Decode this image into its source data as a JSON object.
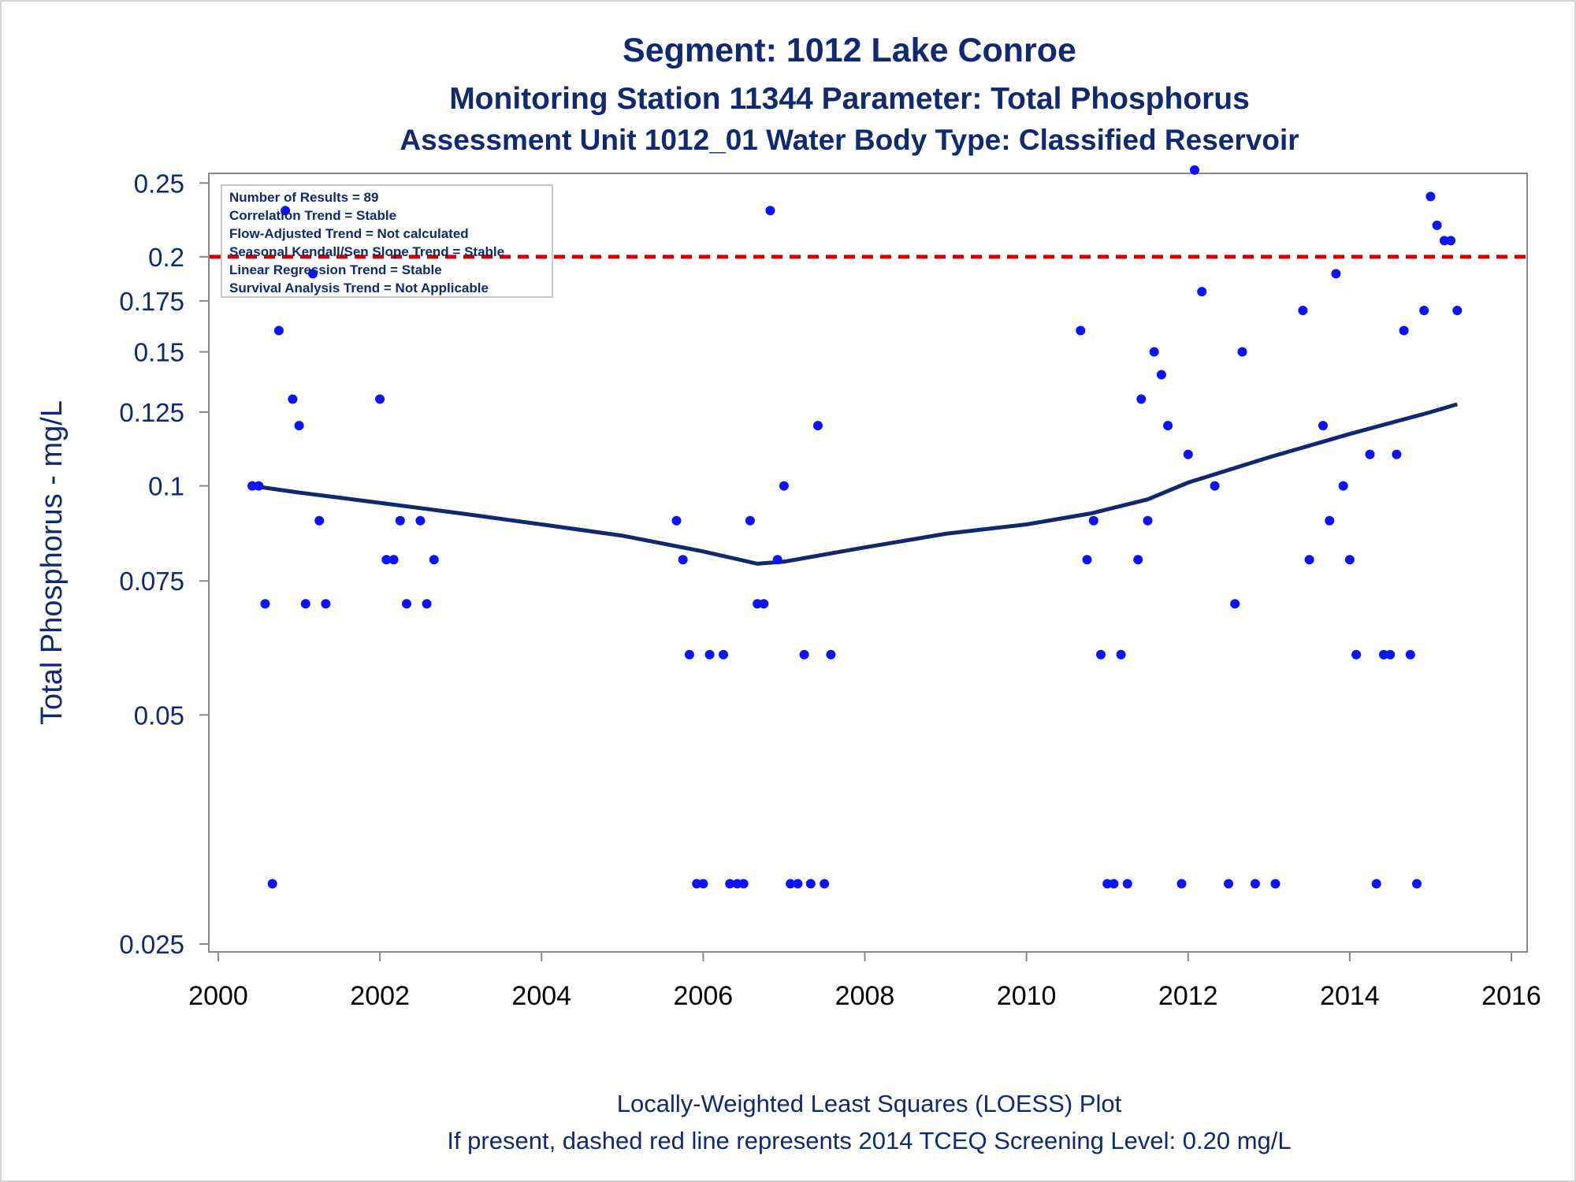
{
  "chart_data": {
    "type": "scatter",
    "title": "Segment: 1012  Lake Conroe",
    "subtitle": "Monitoring Station 11344 Parameter: Total Phosphorus",
    "subtitle2": "Assessment Unit 1012_01   Water Body Type: Classified Reservoir",
    "xlabel": "",
    "ylabel": "Total Phosphorus - mg/L",
    "y_scale": "log",
    "xlim": [
      2000,
      2016
    ],
    "ylim": [
      0.025,
      0.27
    ],
    "x_ticks": [
      2000,
      2002,
      2004,
      2006,
      2008,
      2010,
      2012,
      2014,
      2016
    ],
    "x_tick_labels": [
      "2000",
      "2002",
      "2004",
      "2006",
      "2008",
      "2010",
      "2012",
      "2014",
      "2016"
    ],
    "y_ticks": [
      0.025,
      0.05,
      0.075,
      0.1,
      0.125,
      0.15,
      0.175,
      0.2,
      0.25
    ],
    "y_tick_labels": [
      "0.025",
      "0.05",
      "0.075",
      "0.1",
      "0.125",
      "0.15",
      "0.175",
      "0.2",
      "0.25"
    ],
    "grid": false,
    "colors": {
      "points": "#0a12ff",
      "loess": "#12286e",
      "screening": "#d40000",
      "text": "#0f2a72",
      "axis": "#888888"
    },
    "stats_box": {
      "placement": "top-left",
      "lines": [
        "Number of Results = 89",
        "Correlation Trend = Stable",
        "Flow-Adjusted Trend = Not calculated",
        "Seasonal Kendall/Sen Slope Trend = Stable",
        "Linear Regression Trend = Stable",
        "Survival Analysis Trend = Not Applicable"
      ]
    },
    "screening_level": 0.2,
    "points": [
      {
        "x": 2000.42,
        "y": 0.1
      },
      {
        "x": 2000.5,
        "y": 0.1
      },
      {
        "x": 2000.58,
        "y": 0.07
      },
      {
        "x": 2000.67,
        "y": 0.03
      },
      {
        "x": 2000.75,
        "y": 0.16
      },
      {
        "x": 2000.83,
        "y": 0.23
      },
      {
        "x": 2000.92,
        "y": 0.13
      },
      {
        "x": 2001.0,
        "y": 0.12
      },
      {
        "x": 2001.08,
        "y": 0.07
      },
      {
        "x": 2001.17,
        "y": 0.19
      },
      {
        "x": 2001.25,
        "y": 0.09
      },
      {
        "x": 2001.33,
        "y": 0.07
      },
      {
        "x": 2002.0,
        "y": 0.13
      },
      {
        "x": 2002.08,
        "y": 0.08
      },
      {
        "x": 2002.17,
        "y": 0.08
      },
      {
        "x": 2002.25,
        "y": 0.09
      },
      {
        "x": 2002.33,
        "y": 0.07
      },
      {
        "x": 2002.5,
        "y": 0.09
      },
      {
        "x": 2002.58,
        "y": 0.07
      },
      {
        "x": 2002.67,
        "y": 0.08
      },
      {
        "x": 2005.67,
        "y": 0.09
      },
      {
        "x": 2005.75,
        "y": 0.08
      },
      {
        "x": 2005.83,
        "y": 0.06
      },
      {
        "x": 2005.92,
        "y": 0.03
      },
      {
        "x": 2006.0,
        "y": 0.03
      },
      {
        "x": 2006.08,
        "y": 0.06
      },
      {
        "x": 2006.25,
        "y": 0.06
      },
      {
        "x": 2006.33,
        "y": 0.03
      },
      {
        "x": 2006.42,
        "y": 0.03
      },
      {
        "x": 2006.5,
        "y": 0.03
      },
      {
        "x": 2006.58,
        "y": 0.09
      },
      {
        "x": 2006.67,
        "y": 0.07
      },
      {
        "x": 2006.75,
        "y": 0.07
      },
      {
        "x": 2006.83,
        "y": 0.23
      },
      {
        "x": 2006.92,
        "y": 0.08
      },
      {
        "x": 2007.0,
        "y": 0.1
      },
      {
        "x": 2007.08,
        "y": 0.03
      },
      {
        "x": 2007.17,
        "y": 0.03
      },
      {
        "x": 2007.25,
        "y": 0.06
      },
      {
        "x": 2007.33,
        "y": 0.03
      },
      {
        "x": 2007.42,
        "y": 0.12
      },
      {
        "x": 2007.5,
        "y": 0.03
      },
      {
        "x": 2007.58,
        "y": 0.06
      },
      {
        "x": 2010.67,
        "y": 0.16
      },
      {
        "x": 2010.75,
        "y": 0.08
      },
      {
        "x": 2010.83,
        "y": 0.09
      },
      {
        "x": 2010.92,
        "y": 0.06
      },
      {
        "x": 2011.0,
        "y": 0.03
      },
      {
        "x": 2011.08,
        "y": 0.03
      },
      {
        "x": 2011.17,
        "y": 0.06
      },
      {
        "x": 2011.25,
        "y": 0.03
      },
      {
        "x": 2011.38,
        "y": 0.08
      },
      {
        "x": 2011.42,
        "y": 0.13
      },
      {
        "x": 2011.5,
        "y": 0.09
      },
      {
        "x": 2011.58,
        "y": 0.15
      },
      {
        "x": 2011.67,
        "y": 0.14
      },
      {
        "x": 2011.75,
        "y": 0.12
      },
      {
        "x": 2011.92,
        "y": 0.03
      },
      {
        "x": 2012.0,
        "y": 0.11
      },
      {
        "x": 2012.08,
        "y": 0.26
      },
      {
        "x": 2012.17,
        "y": 0.18
      },
      {
        "x": 2012.33,
        "y": 0.1
      },
      {
        "x": 2012.5,
        "y": 0.03
      },
      {
        "x": 2012.58,
        "y": 0.07
      },
      {
        "x": 2012.67,
        "y": 0.15
      },
      {
        "x": 2012.83,
        "y": 0.03
      },
      {
        "x": 2013.08,
        "y": 0.03
      },
      {
        "x": 2013.42,
        "y": 0.17
      },
      {
        "x": 2013.5,
        "y": 0.08
      },
      {
        "x": 2013.67,
        "y": 0.12
      },
      {
        "x": 2013.75,
        "y": 0.09
      },
      {
        "x": 2013.83,
        "y": 0.19
      },
      {
        "x": 2013.92,
        "y": 0.1
      },
      {
        "x": 2014.0,
        "y": 0.08
      },
      {
        "x": 2014.08,
        "y": 0.06
      },
      {
        "x": 2014.25,
        "y": 0.11
      },
      {
        "x": 2014.33,
        "y": 0.03
      },
      {
        "x": 2014.42,
        "y": 0.06
      },
      {
        "x": 2014.5,
        "y": 0.06
      },
      {
        "x": 2014.58,
        "y": 0.11
      },
      {
        "x": 2014.67,
        "y": 0.16
      },
      {
        "x": 2014.75,
        "y": 0.06
      },
      {
        "x": 2014.83,
        "y": 0.03
      },
      {
        "x": 2014.92,
        "y": 0.17
      },
      {
        "x": 2015.0,
        "y": 0.24
      },
      {
        "x": 2015.08,
        "y": 0.22
      },
      {
        "x": 2015.17,
        "y": 0.21
      },
      {
        "x": 2015.25,
        "y": 0.21
      },
      {
        "x": 2015.33,
        "y": 0.17
      }
    ],
    "loess": [
      {
        "x": 2000.42,
        "y": 0.1
      },
      {
        "x": 2001.0,
        "y": 0.098
      },
      {
        "x": 2002.0,
        "y": 0.095
      },
      {
        "x": 2003.0,
        "y": 0.092
      },
      {
        "x": 2004.0,
        "y": 0.089
      },
      {
        "x": 2005.0,
        "y": 0.086
      },
      {
        "x": 2006.0,
        "y": 0.082
      },
      {
        "x": 2006.67,
        "y": 0.079
      },
      {
        "x": 2007.0,
        "y": 0.0795
      },
      {
        "x": 2008.0,
        "y": 0.083
      },
      {
        "x": 2009.0,
        "y": 0.0865
      },
      {
        "x": 2010.0,
        "y": 0.089
      },
      {
        "x": 2010.8,
        "y": 0.092
      },
      {
        "x": 2011.5,
        "y": 0.096
      },
      {
        "x": 2012.0,
        "y": 0.101
      },
      {
        "x": 2013.0,
        "y": 0.109
      },
      {
        "x": 2014.0,
        "y": 0.117
      },
      {
        "x": 2015.0,
        "y": 0.125
      },
      {
        "x": 2015.33,
        "y": 0.128
      }
    ],
    "footer": [
      "Locally-Weighted Least Squares (LOESS) Plot",
      "If present, dashed red line represents 2014 TCEQ Screening Level: 0.20 mg/L"
    ]
  }
}
